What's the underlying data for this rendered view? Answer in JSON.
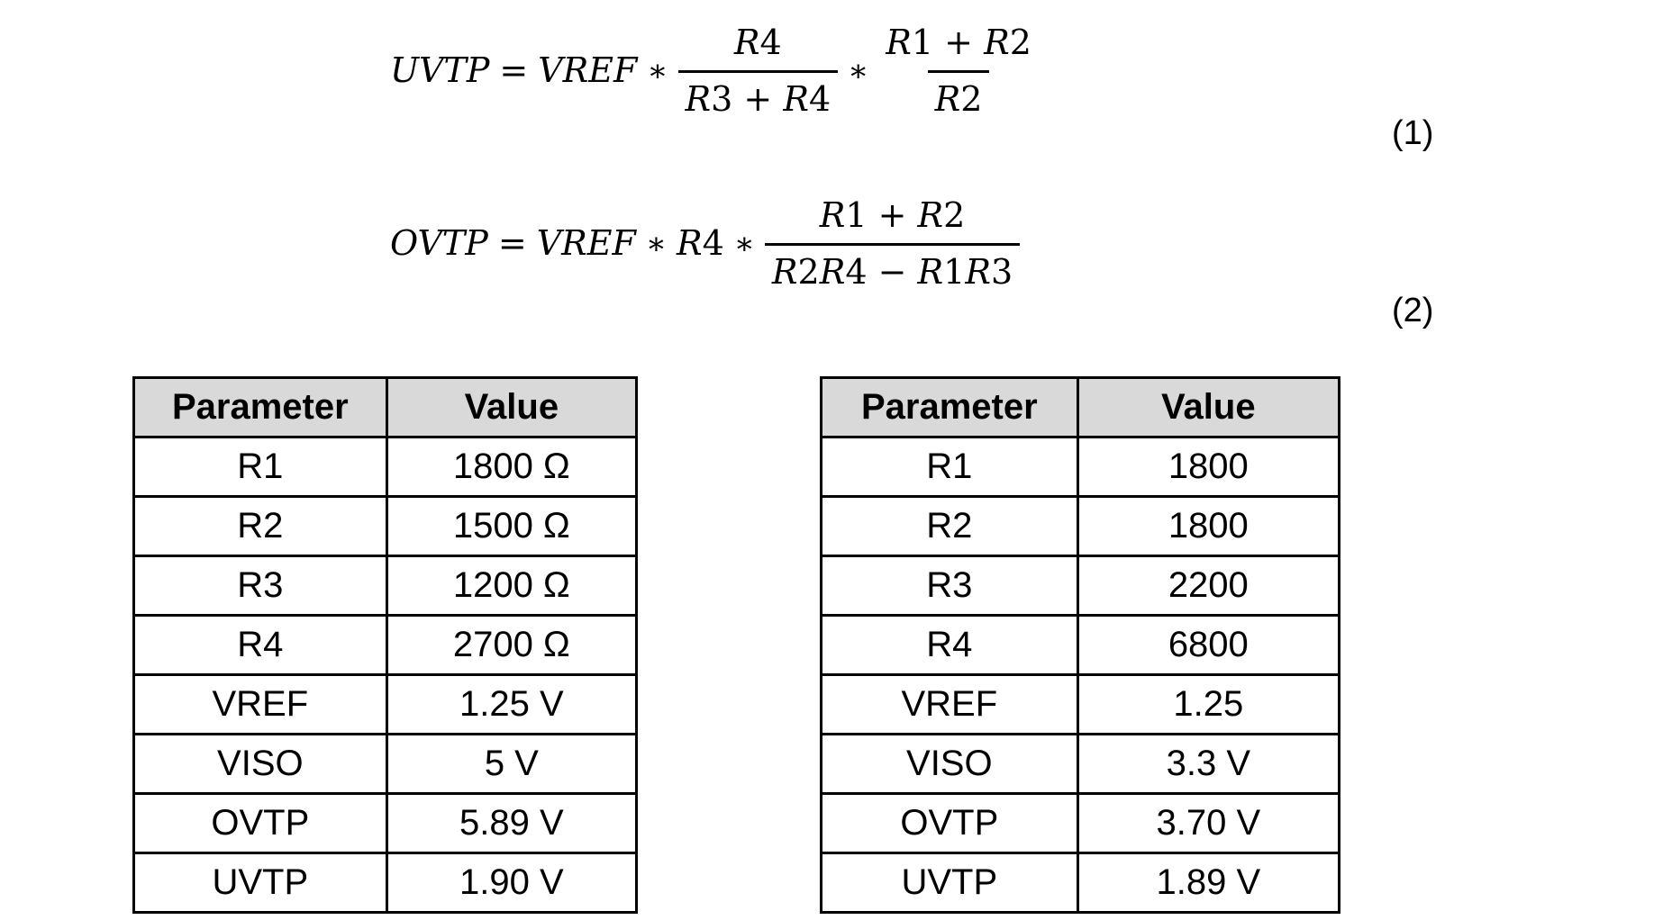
{
  "colors": {
    "page_background": "#ffffff",
    "text": "#000000",
    "table_header_bg": "#d9d9d9",
    "table_border": "#000000"
  },
  "equations": [
    {
      "lhs": "UVTP",
      "equals": "=",
      "term1": "VREF",
      "op1": "∗",
      "frac1": {
        "num": "R4",
        "den": "R3 + R4"
      },
      "op2": "∗",
      "frac2": {
        "num": "R1 + R2",
        "den": "R2"
      },
      "label": "(1)"
    },
    {
      "lhs": "OVTP",
      "equals": "=",
      "term1": "VREF",
      "op1": "∗",
      "term2": "R4",
      "op2": "∗",
      "frac1": {
        "num": "R1 + R2",
        "den": "R2R4 − R1R3"
      },
      "label": "(2)"
    }
  ],
  "tables": [
    {
      "headers": [
        "Parameter",
        "Value"
      ],
      "rows": [
        [
          "R1",
          "1800 Ω"
        ],
        [
          "R2",
          "1500 Ω"
        ],
        [
          "R3",
          "1200 Ω"
        ],
        [
          "R4",
          "2700 Ω"
        ],
        [
          "VREF",
          "1.25 V"
        ],
        [
          "VISO",
          "5 V"
        ],
        [
          "OVTP",
          "5.89 V"
        ],
        [
          "UVTP",
          "1.90 V"
        ]
      ]
    },
    {
      "headers": [
        "Parameter",
        "Value"
      ],
      "rows": [
        [
          "R1",
          "1800"
        ],
        [
          "R2",
          "1800"
        ],
        [
          "R3",
          "2200"
        ],
        [
          "R4",
          "6800"
        ],
        [
          "VREF",
          "1.25"
        ],
        [
          "VISO",
          "3.3 V"
        ],
        [
          "OVTP",
          "3.70 V"
        ],
        [
          "UVTP",
          "1.89 V"
        ]
      ]
    }
  ]
}
